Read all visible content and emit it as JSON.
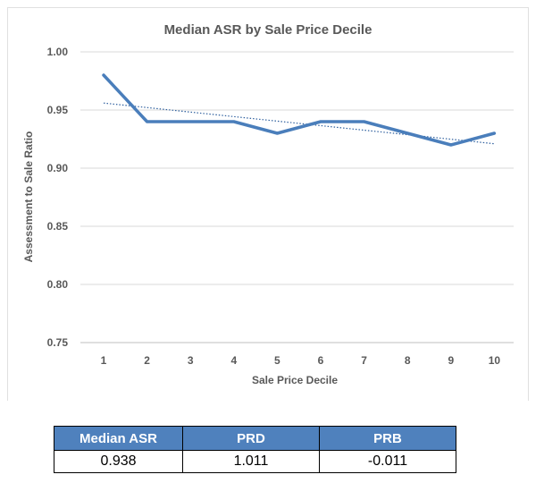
{
  "chart_data": {
    "type": "line",
    "title": "Median ASR by Sale Price Decile",
    "xlabel": "Sale Price Decile",
    "ylabel": "Assessment to Sale Ratio",
    "categories": [
      "1",
      "2",
      "3",
      "4",
      "5",
      "6",
      "7",
      "8",
      "9",
      "10"
    ],
    "values": [
      0.98,
      0.94,
      0.94,
      0.94,
      0.93,
      0.94,
      0.94,
      0.93,
      0.92,
      0.93
    ],
    "trendline": {
      "type": "linear",
      "style": "dotted",
      "start": 0.956,
      "end": 0.921
    },
    "ylim": [
      0.75,
      1.0
    ],
    "yticks": [
      "1.00",
      "0.95",
      "0.90",
      "0.85",
      "0.80",
      "0.75"
    ],
    "grid": true,
    "legend": "none",
    "line_color": "#4a7ebb",
    "trend_color": "#2e5f9e"
  },
  "stats_table": {
    "headers": [
      "Median ASR",
      "PRD",
      "PRB"
    ],
    "values": [
      "0.938",
      "1.011",
      "-0.011"
    ],
    "header_color": "#4f81bd"
  }
}
